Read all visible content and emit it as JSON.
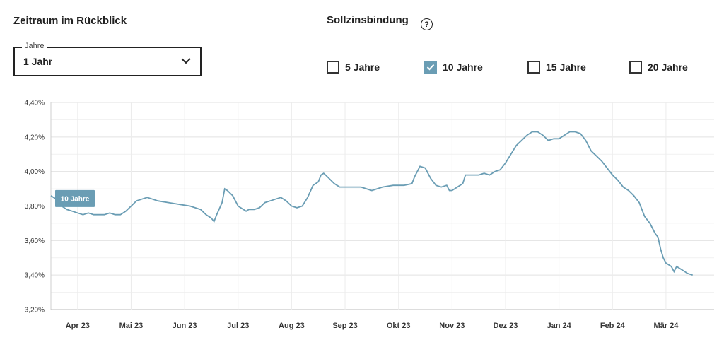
{
  "controls": {
    "period_title": "Zeitraum im Rückblick",
    "rate_title": "Sollzinsbindung",
    "help_symbol": "?",
    "select_legend": "Jahre",
    "select_value": "1 Jahr",
    "options": [
      {
        "label": "5 Jahre",
        "checked": false
      },
      {
        "label": "10 Jahre",
        "checked": true
      },
      {
        "label": "15 Jahre",
        "checked": false
      },
      {
        "label": "20 Jahre",
        "checked": false
      }
    ],
    "accent_color": "#6a9db4"
  },
  "chart_data": {
    "type": "line",
    "title": "",
    "xlabel": "",
    "ylabel": "",
    "ylim": [
      3.2,
      4.4
    ],
    "yticks": [
      3.2,
      3.4,
      3.6,
      3.8,
      4.0,
      4.2,
      4.4
    ],
    "ytick_labels": [
      "3,20%",
      "3,40%",
      "3,60%",
      "3,80%",
      "4,00%",
      "4,20%",
      "4,40%"
    ],
    "xlim": [
      0,
      12.4
    ],
    "xticks": [
      0.5,
      1.5,
      2.5,
      3.5,
      4.5,
      5.5,
      6.5,
      7.5,
      8.5,
      9.5,
      10.5,
      11.5
    ],
    "xtick_labels": [
      "Apr 23",
      "Mai 23",
      "Jun 23",
      "Jul 23",
      "Aug 23",
      "Sep 23",
      "Okt 23",
      "Nov 23",
      "Dez 23",
      "Jan 24",
      "Feb 24",
      "Mär 24"
    ],
    "grid": true,
    "legend": "none",
    "series": [
      {
        "name": "10 Jahre",
        "label_text": "10 Jahre",
        "color": "#6a9db4",
        "points": [
          [
            0.0,
            3.86
          ],
          [
            0.1,
            3.84
          ],
          [
            0.2,
            3.8
          ],
          [
            0.3,
            3.78
          ],
          [
            0.4,
            3.77
          ],
          [
            0.5,
            3.76
          ],
          [
            0.6,
            3.75
          ],
          [
            0.7,
            3.76
          ],
          [
            0.8,
            3.75
          ],
          [
            1.0,
            3.75
          ],
          [
            1.1,
            3.76
          ],
          [
            1.2,
            3.75
          ],
          [
            1.3,
            3.75
          ],
          [
            1.4,
            3.77
          ],
          [
            1.5,
            3.8
          ],
          [
            1.6,
            3.83
          ],
          [
            1.7,
            3.84
          ],
          [
            1.8,
            3.85
          ],
          [
            1.9,
            3.84
          ],
          [
            2.0,
            3.83
          ],
          [
            2.2,
            3.82
          ],
          [
            2.4,
            3.81
          ],
          [
            2.6,
            3.8
          ],
          [
            2.8,
            3.78
          ],
          [
            2.9,
            3.75
          ],
          [
            3.0,
            3.73
          ],
          [
            3.05,
            3.71
          ],
          [
            3.1,
            3.75
          ],
          [
            3.2,
            3.82
          ],
          [
            3.25,
            3.9
          ],
          [
            3.3,
            3.89
          ],
          [
            3.4,
            3.86
          ],
          [
            3.5,
            3.8
          ],
          [
            3.6,
            3.78
          ],
          [
            3.65,
            3.77
          ],
          [
            3.7,
            3.78
          ],
          [
            3.8,
            3.78
          ],
          [
            3.9,
            3.79
          ],
          [
            4.0,
            3.82
          ],
          [
            4.1,
            3.83
          ],
          [
            4.2,
            3.84
          ],
          [
            4.3,
            3.85
          ],
          [
            4.4,
            3.83
          ],
          [
            4.5,
            3.8
          ],
          [
            4.6,
            3.79
          ],
          [
            4.7,
            3.8
          ],
          [
            4.8,
            3.85
          ],
          [
            4.9,
            3.92
          ],
          [
            5.0,
            3.94
          ],
          [
            5.05,
            3.98
          ],
          [
            5.1,
            3.99
          ],
          [
            5.2,
            3.96
          ],
          [
            5.3,
            3.93
          ],
          [
            5.4,
            3.91
          ],
          [
            5.6,
            3.91
          ],
          [
            5.8,
            3.91
          ],
          [
            5.9,
            3.9
          ],
          [
            6.0,
            3.89
          ],
          [
            6.2,
            3.91
          ],
          [
            6.4,
            3.92
          ],
          [
            6.6,
            3.92
          ],
          [
            6.75,
            3.93
          ],
          [
            6.8,
            3.97
          ],
          [
            6.9,
            4.03
          ],
          [
            7.0,
            4.02
          ],
          [
            7.1,
            3.96
          ],
          [
            7.2,
            3.92
          ],
          [
            7.3,
            3.91
          ],
          [
            7.4,
            3.92
          ],
          [
            7.45,
            3.89
          ],
          [
            7.5,
            3.89
          ],
          [
            7.6,
            3.91
          ],
          [
            7.7,
            3.93
          ],
          [
            7.75,
            3.98
          ],
          [
            7.85,
            3.98
          ],
          [
            8.0,
            3.98
          ],
          [
            8.1,
            3.99
          ],
          [
            8.2,
            3.98
          ],
          [
            8.3,
            4.0
          ],
          [
            8.4,
            4.01
          ],
          [
            8.5,
            4.05
          ],
          [
            8.6,
            4.1
          ],
          [
            8.7,
            4.15
          ],
          [
            8.8,
            4.18
          ],
          [
            8.9,
            4.21
          ],
          [
            9.0,
            4.23
          ],
          [
            9.1,
            4.23
          ],
          [
            9.2,
            4.21
          ],
          [
            9.3,
            4.18
          ],
          [
            9.4,
            4.19
          ],
          [
            9.5,
            4.19
          ],
          [
            9.6,
            4.21
          ],
          [
            9.7,
            4.23
          ],
          [
            9.8,
            4.23
          ],
          [
            9.9,
            4.22
          ],
          [
            10.0,
            4.18
          ],
          [
            10.1,
            4.12
          ],
          [
            10.2,
            4.09
          ],
          [
            10.3,
            4.06
          ],
          [
            10.4,
            4.02
          ],
          [
            10.5,
            3.98
          ],
          [
            10.6,
            3.95
          ],
          [
            10.7,
            3.91
          ],
          [
            10.8,
            3.89
          ],
          [
            10.9,
            3.86
          ],
          [
            11.0,
            3.82
          ],
          [
            11.05,
            3.78
          ],
          [
            11.1,
            3.74
          ],
          [
            11.2,
            3.7
          ],
          [
            11.3,
            3.64
          ],
          [
            11.35,
            3.62
          ],
          [
            11.4,
            3.55
          ],
          [
            11.45,
            3.5
          ],
          [
            11.5,
            3.47
          ],
          [
            11.6,
            3.45
          ],
          [
            11.65,
            3.42
          ],
          [
            11.7,
            3.45
          ],
          [
            11.8,
            3.43
          ],
          [
            11.9,
            3.41
          ],
          [
            12.0,
            3.4
          ]
        ]
      }
    ]
  }
}
